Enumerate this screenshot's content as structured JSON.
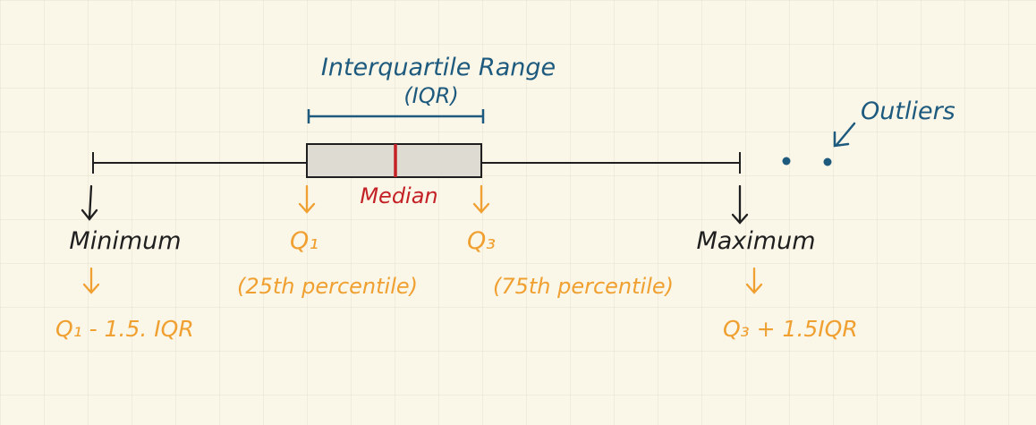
{
  "diagram": {
    "iqr_label_line1": "Interquartile Range",
    "iqr_label_line2": "(IQR)",
    "outliers_label": "Outliers",
    "median_label": "Median",
    "minimum_label": "Minimum",
    "minimum_formula": "Q₁ - 1.5. IQR",
    "q1_label": "Q₁",
    "q1_percentile": "(25th percentile)",
    "q3_label": "Q₃",
    "q3_percentile": "(75th percentile)",
    "maximum_label": "Maximum",
    "maximum_formula": "Q₃ + 1.5IQR"
  },
  "colors": {
    "background": "#faf6e8",
    "grid": "#e6e0cc",
    "ink": "#1f1f1f",
    "blue": "#1d5a7e",
    "orange": "#f0a030",
    "red": "#c42127",
    "box_fill": "#dedbd2"
  },
  "icons": [
    "down-arrow-icon",
    "outlier-point-icon"
  ]
}
